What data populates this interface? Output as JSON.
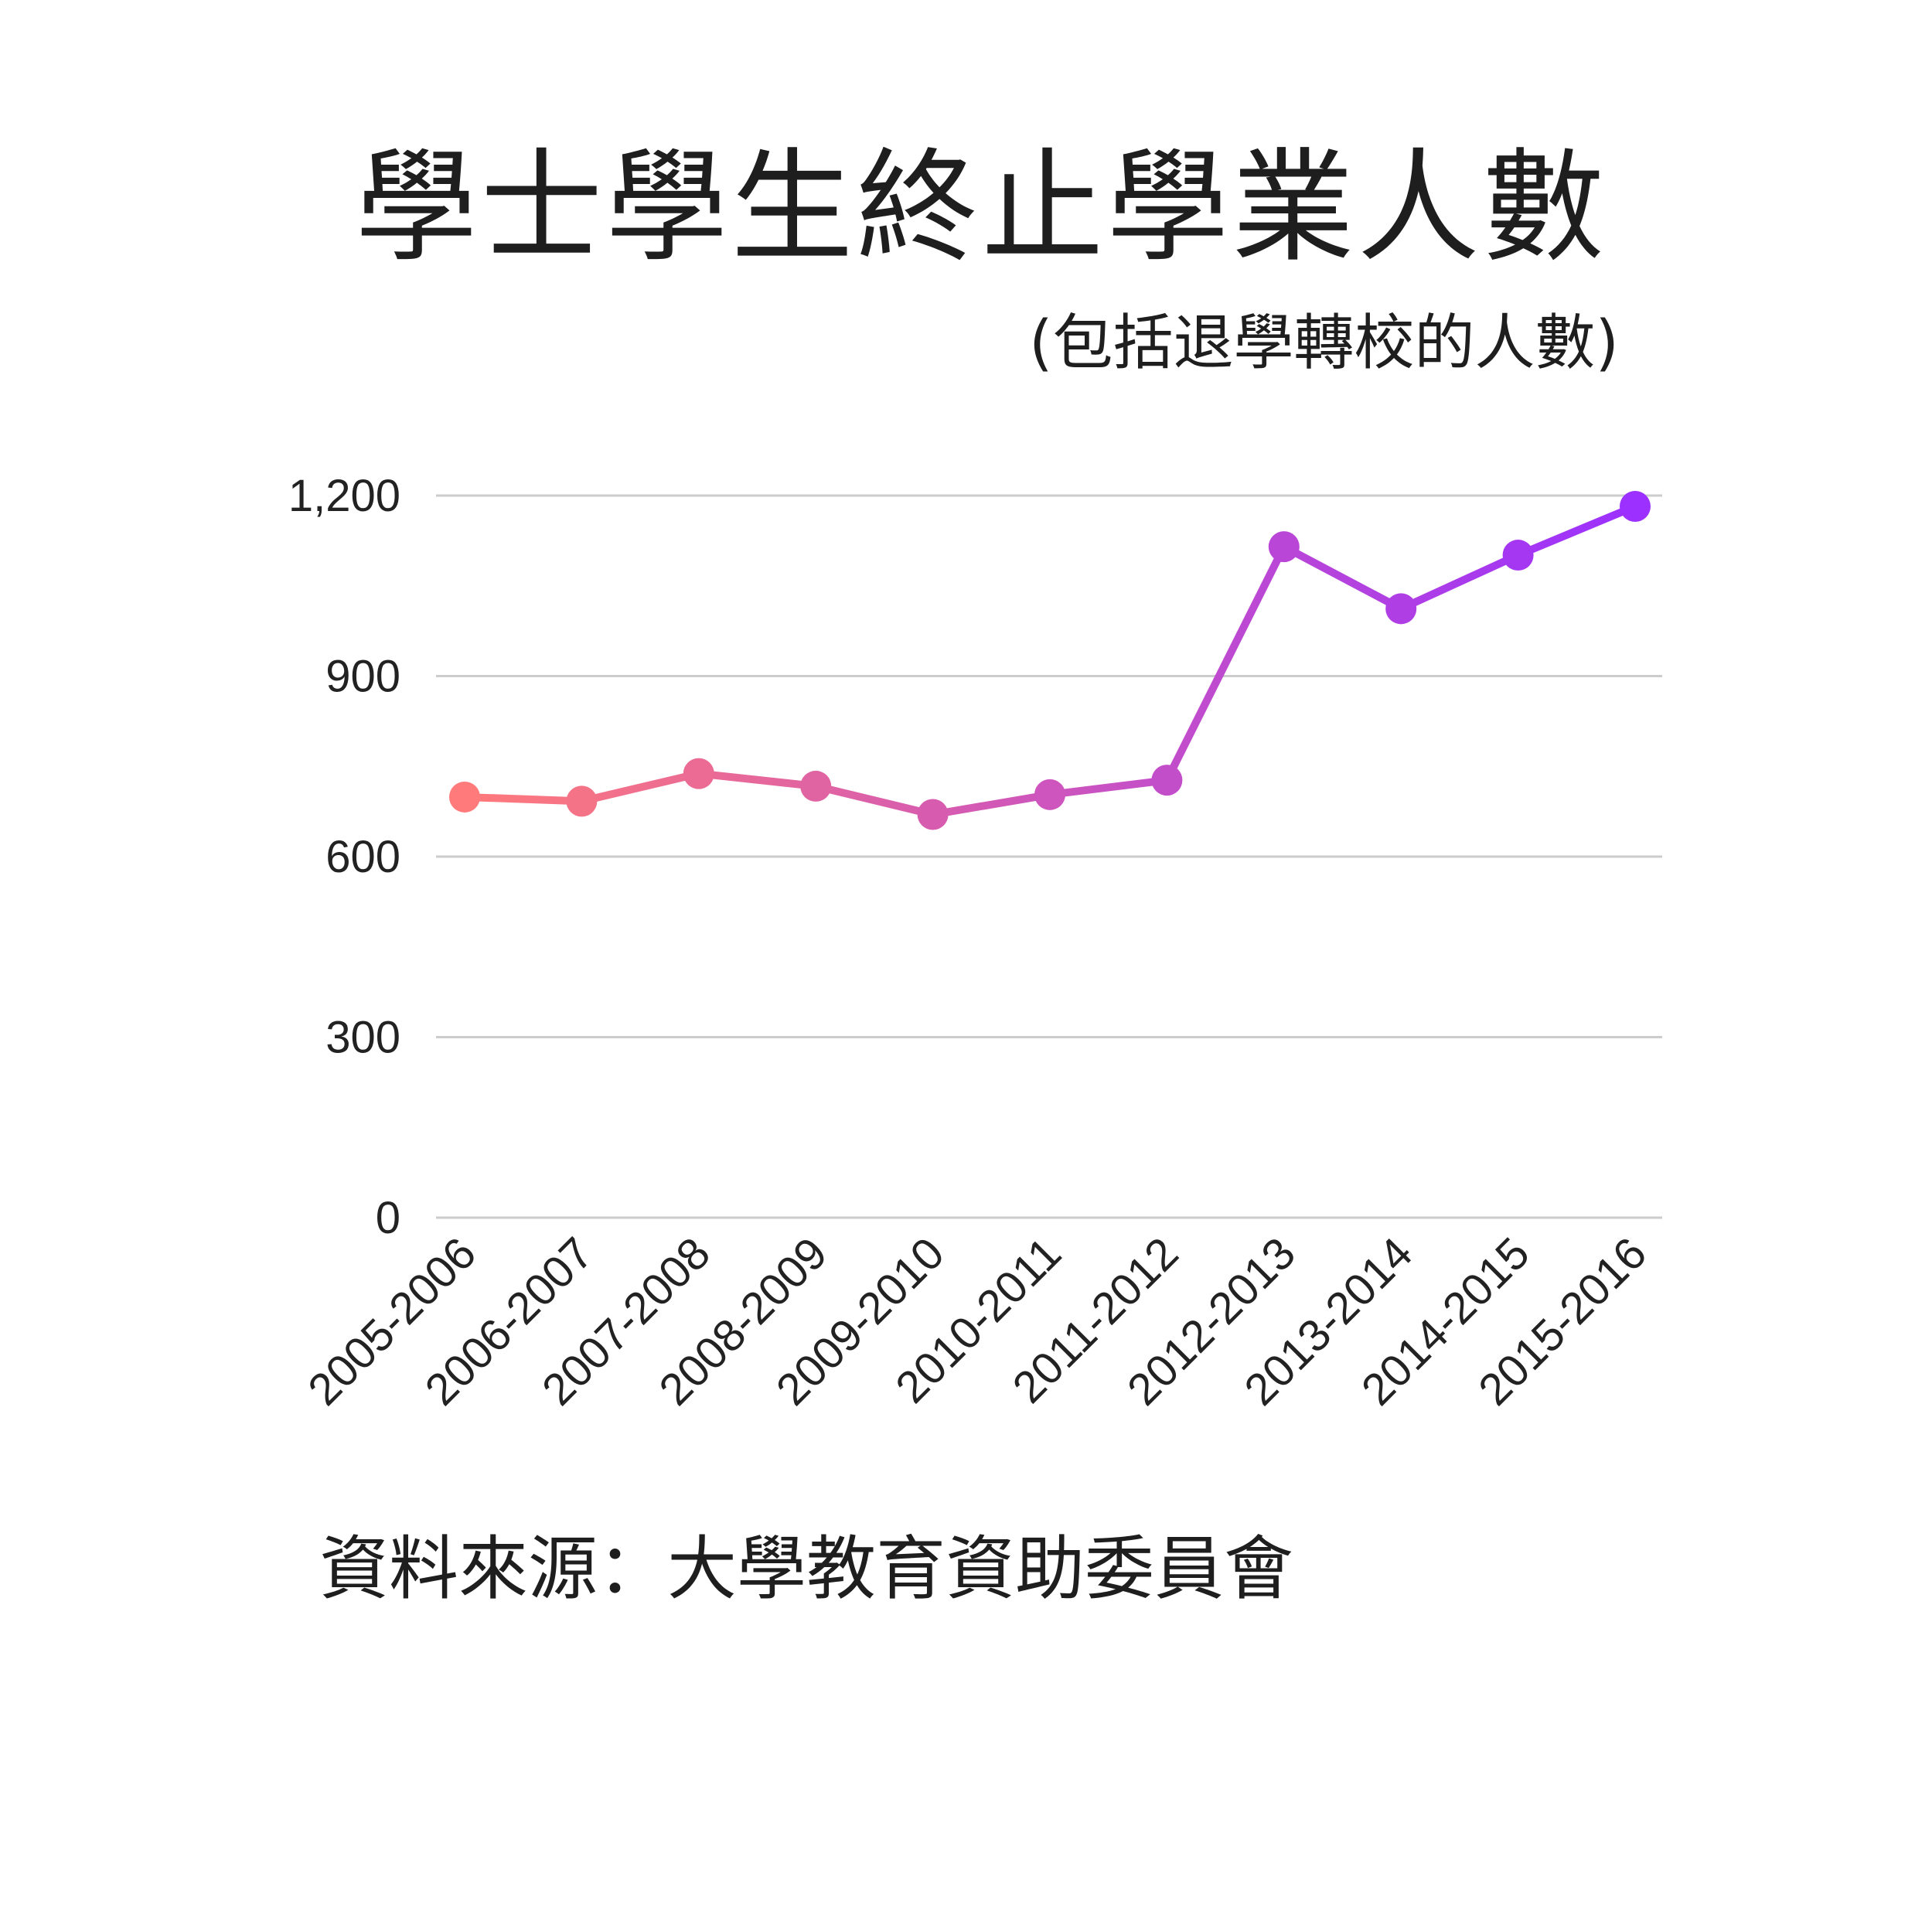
{
  "chart_data": {
    "type": "line",
    "title": "學士學生終止學業人數",
    "subtitle": "(包括退學轉校的人數)",
    "source": "資料來源：大學教育資助委員會",
    "categories": [
      "2005-2006",
      "2006-2007",
      "2007-2008",
      "2008-2009",
      "2009-2010",
      "2010-2011",
      "2011-2012",
      "2012-2013",
      "2013-2014",
      "2014-2015",
      "2015-2016"
    ],
    "values": [
      699,
      692,
      738,
      717,
      670,
      703,
      727,
      1115,
      1012,
      1101,
      1182
    ],
    "ylim": [
      0,
      1200
    ],
    "yticks": [
      0,
      300,
      600,
      900,
      1200
    ],
    "ytick_labels": [
      "0",
      "300",
      "600",
      "900",
      "1,200"
    ],
    "grid": true,
    "legend": "none",
    "colors": {
      "start": "#ff7a7a",
      "end": "#9b30ff",
      "grid": "#cccccc"
    }
  }
}
